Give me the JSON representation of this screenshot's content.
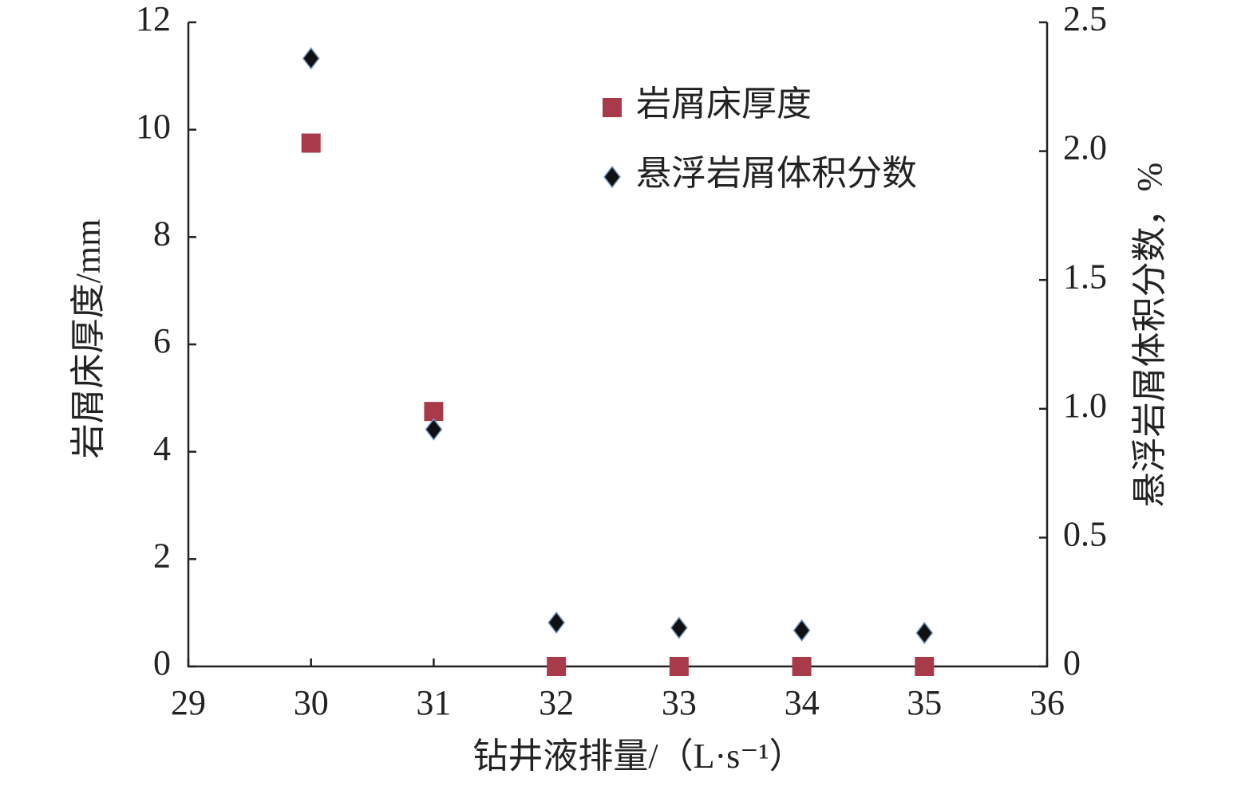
{
  "chart_data": {
    "type": "scatter",
    "x_label": "钻井液排量/（L·s⁻¹）",
    "y_label": "岩屑床厚度/mm",
    "y2_label": "悬浮岩屑体积分数，%",
    "x": [
      30,
      31,
      32,
      33,
      34,
      35
    ],
    "series": [
      {
        "name": "岩屑床厚度",
        "color": "#a83a4a",
        "marker": "square",
        "values": [
          9.75,
          4.75,
          0,
          0,
          0,
          0
        ]
      },
      {
        "name": "悬浮岩屑体积分数",
        "color": "#111111",
        "marker": "diamond",
        "axis": "y2",
        "values": [
          2.36,
          0.92,
          0.17,
          0.15,
          0.14,
          0.13
        ]
      }
    ],
    "xlim": [
      29,
      36
    ],
    "xticks": [
      29,
      30,
      31,
      32,
      33,
      34,
      35,
      36
    ],
    "ylim": [
      0,
      12
    ],
    "yticks": [
      0,
      2,
      4,
      6,
      8,
      10,
      12
    ],
    "y2lim": [
      0,
      2.5
    ],
    "y2ticks": [
      0,
      {
        "value": 0.5,
        "label": "0.5"
      },
      {
        "value": 1,
        "label": "1.0"
      },
      1.5,
      {
        "value": 2,
        "label": "2.0"
      },
      2.5
    ],
    "legend": "upper right",
    "grid": false
  }
}
